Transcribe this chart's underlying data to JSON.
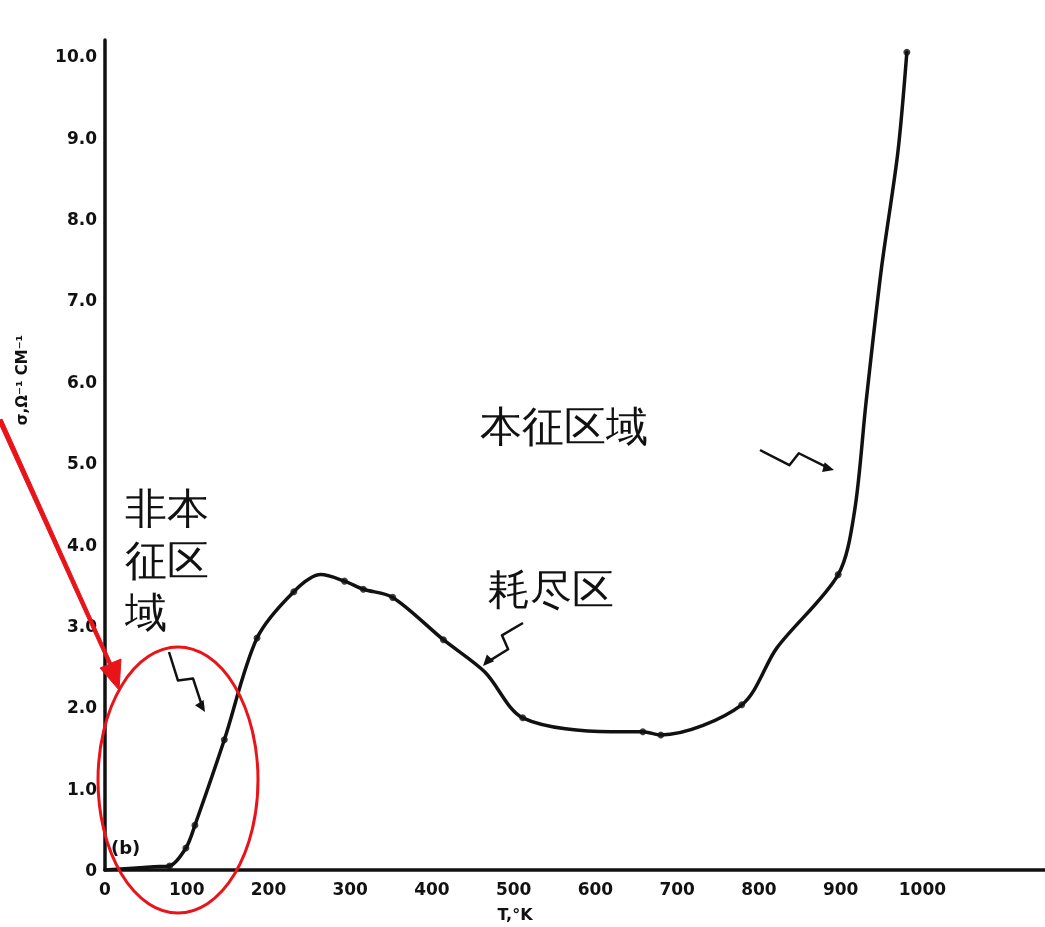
{
  "chart_data": {
    "type": "line",
    "xlabel": "T,°K",
    "ylabel": "σ,Ω⁻¹ CM⁻¹",
    "xlim": [
      0,
      1150
    ],
    "xticks": [
      0,
      100,
      200,
      300,
      400,
      500,
      600,
      700,
      800,
      900,
      1000
    ],
    "ylim": [
      0,
      10.2
    ],
    "yticks": [
      0,
      {
        "value": 1,
        "label": "1.0"
      },
      {
        "value": 2,
        "label": "2.0"
      },
      {
        "value": 3,
        "label": "3.0"
      },
      {
        "value": 4,
        "label": "4.0"
      },
      {
        "value": 5,
        "label": "5.0"
      },
      {
        "value": 6,
        "label": "6.0"
      },
      {
        "value": 7,
        "label": "7.0"
      },
      {
        "value": 8,
        "label": "8.0"
      },
      {
        "value": 9,
        "label": "9.0"
      },
      {
        "value": 10,
        "label": "10.0"
      }
    ],
    "grid": false,
    "marker": "circle",
    "series": [
      {
        "type": "line",
        "marker": "none",
        "color": "#111111",
        "x": [
          0,
          60,
          79,
          99,
          110,
          146,
          186,
          231,
          264,
          293,
          316,
          352,
          414,
          465,
          511,
          619,
          658,
          680,
          779,
          822,
          897,
          917,
          931,
          950,
          970,
          981
        ],
        "values": [
          0,
          0.04,
          0.05,
          0.27,
          0.55,
          1.6,
          2.85,
          3.42,
          3.63,
          3.55,
          3.45,
          3.35,
          2.83,
          2.43,
          1.87,
          1.7,
          1.7,
          1.66,
          2.03,
          2.73,
          3.63,
          4.41,
          5.74,
          7.4,
          8.82,
          10.05
        ]
      },
      {
        "type": "scatter",
        "color": "#111111",
        "x": [
          79,
          99,
          110,
          146,
          186,
          231,
          293,
          316,
          352,
          414,
          511,
          658,
          680,
          779,
          897,
          981
        ],
        "values": [
          0.05,
          0.27,
          0.55,
          1.6,
          2.85,
          3.42,
          3.55,
          3.45,
          3.35,
          2.83,
          1.87,
          1.7,
          1.66,
          2.03,
          3.63,
          10.05
        ]
      }
    ],
    "annotations": [
      "(b)",
      "非本征区域",
      "耗尽区",
      "本征区域"
    ]
  }
}
